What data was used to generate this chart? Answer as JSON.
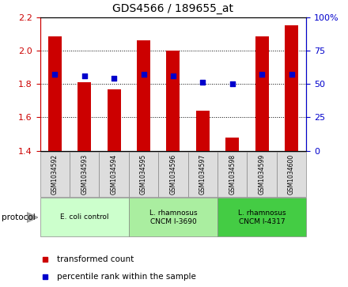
{
  "title": "GDS4566 / 189655_at",
  "samples": [
    "GSM1034592",
    "GSM1034593",
    "GSM1034594",
    "GSM1034595",
    "GSM1034596",
    "GSM1034597",
    "GSM1034598",
    "GSM1034599",
    "GSM1034600"
  ],
  "transformed_count": [
    2.085,
    1.81,
    1.77,
    2.06,
    2.0,
    1.64,
    1.48,
    2.085,
    2.15
  ],
  "percentile_rank": [
    57,
    56,
    54,
    57,
    56,
    51,
    50,
    57,
    57
  ],
  "baseline": 1.4,
  "ylim_left": [
    1.4,
    2.2
  ],
  "ylim_right": [
    0,
    100
  ],
  "yticks_left": [
    1.4,
    1.6,
    1.8,
    2.0,
    2.2
  ],
  "yticks_right": [
    0,
    25,
    50,
    75,
    100
  ],
  "bar_color": "#CC0000",
  "dot_color": "#0000CC",
  "group_colors": [
    "#CCFFCC",
    "#AAEEA0",
    "#44CC44"
  ],
  "groups": [
    {
      "label": "E. coli control",
      "indices": [
        0,
        1,
        2
      ]
    },
    {
      "label": "L. rhamnosus\nCNCM I-3690",
      "indices": [
        3,
        4,
        5
      ]
    },
    {
      "label": "L. rhamnosus\nCNCM I-4317",
      "indices": [
        6,
        7,
        8
      ]
    }
  ],
  "protocol_label": "protocol",
  "legend_items": [
    {
      "label": "transformed count",
      "color": "#CC0000"
    },
    {
      "label": "percentile rank within the sample",
      "color": "#0000CC"
    }
  ],
  "tick_label_color_left": "#CC0000",
  "tick_label_color_right": "#0000CC",
  "figsize": [
    4.4,
    3.63
  ],
  "dpi": 100
}
